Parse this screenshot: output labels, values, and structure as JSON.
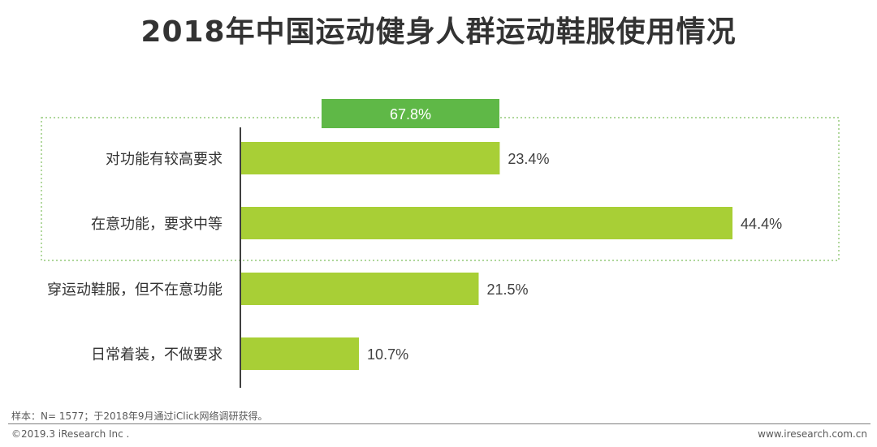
{
  "title": "2018年中国运动健身人群运动鞋服使用情况",
  "chart_data": {
    "type": "bar",
    "orientation": "horizontal",
    "categories": [
      "对功能有较高要求",
      "在意功能，要求中等",
      "穿运动鞋服，但不在意功能",
      "日常着装，不做要求"
    ],
    "values": [
      23.4,
      44.4,
      21.5,
      10.7
    ],
    "value_labels": [
      "23.4%",
      "44.4%",
      "21.5%",
      "10.7%"
    ],
    "bar_color": "#a8cf36",
    "group_highlight": {
      "categories": [
        "对功能有较高要求",
        "在意功能，要求中等"
      ],
      "value": 67.8,
      "label": "67.8%",
      "color": "#5fb847",
      "style": "dotted-box"
    },
    "unit": "%",
    "grid": false,
    "legend": "none"
  },
  "source_note": "样本：N= 1577；于2018年9月通过iClick网络调研获得。",
  "copyright": "©2019.3 iResearch Inc .",
  "website": "www.iresearch.com.cn"
}
